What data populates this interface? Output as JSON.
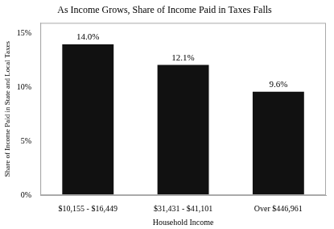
{
  "chart_data": {
    "type": "bar",
    "title": "As Income Grows, Share of Income Paid in Taxes Falls",
    "categories": [
      "$10,155 - $16,449",
      "$31,431 - $41,101",
      "Over $446,961"
    ],
    "values": [
      14.0,
      12.1,
      9.6
    ],
    "value_labels": [
      "14.0%",
      "12.1%",
      "9.6%"
    ],
    "data_labels": true,
    "color": "#111111",
    "xlabel": "Household Income",
    "ylabel": "Share of Income Paid in State and Local Taxes",
    "ylim": [
      0,
      16
    ],
    "yticks": [
      {
        "value": 0,
        "label": "0%"
      },
      {
        "value": 5,
        "label": "5%"
      },
      {
        "value": 10,
        "label": "10%"
      },
      {
        "value": 15,
        "label": "15%"
      }
    ],
    "grid": false
  }
}
